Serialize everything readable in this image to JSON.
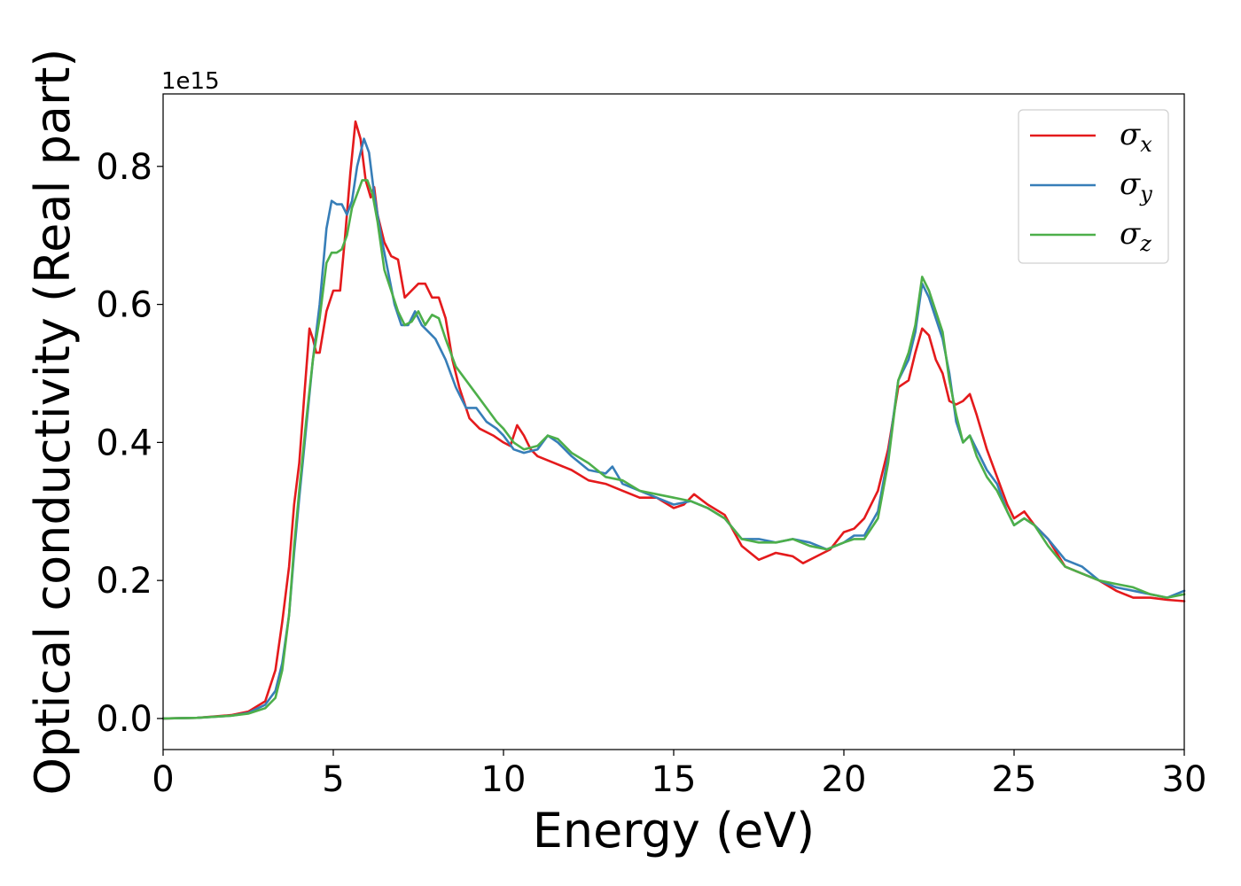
{
  "chart_data": {
    "type": "line",
    "xlabel": "Energy (eV)",
    "ylabel": "Optical conductivity (Real part)",
    "y_offset_label": "1e15",
    "xlim": [
      0,
      30
    ],
    "ylim": [
      -0.045,
      0.905
    ],
    "xticks": [
      0,
      5,
      10,
      15,
      20,
      25,
      30
    ],
    "xtick_labels": [
      "0",
      "5",
      "10",
      "15",
      "20",
      "25",
      "30"
    ],
    "yticks": [
      0.0,
      0.2,
      0.4,
      0.6,
      0.8
    ],
    "ytick_labels": [
      "0.0",
      "0.2",
      "0.4",
      "0.6",
      "0.8"
    ],
    "grid": false,
    "legend_position": "top-right",
    "series": [
      {
        "name": "σx",
        "legend_symbol": "σ",
        "legend_sub": "x",
        "color": "#e41a1c",
        "points": [
          [
            0,
            0
          ],
          [
            1,
            0.001
          ],
          [
            2,
            0.005
          ],
          [
            2.5,
            0.01
          ],
          [
            3,
            0.025
          ],
          [
            3.3,
            0.07
          ],
          [
            3.5,
            0.14
          ],
          [
            3.7,
            0.22
          ],
          [
            3.85,
            0.31
          ],
          [
            4.0,
            0.37
          ],
          [
            4.15,
            0.47
          ],
          [
            4.3,
            0.565
          ],
          [
            4.4,
            0.55
          ],
          [
            4.5,
            0.53
          ],
          [
            4.6,
            0.53
          ],
          [
            4.8,
            0.59
          ],
          [
            5.0,
            0.62
          ],
          [
            5.2,
            0.62
          ],
          [
            5.35,
            0.7
          ],
          [
            5.5,
            0.79
          ],
          [
            5.65,
            0.865
          ],
          [
            5.8,
            0.84
          ],
          [
            5.95,
            0.78
          ],
          [
            6.1,
            0.755
          ],
          [
            6.2,
            0.77
          ],
          [
            6.3,
            0.73
          ],
          [
            6.5,
            0.69
          ],
          [
            6.7,
            0.67
          ],
          [
            6.9,
            0.665
          ],
          [
            7.1,
            0.61
          ],
          [
            7.3,
            0.62
          ],
          [
            7.5,
            0.63
          ],
          [
            7.7,
            0.63
          ],
          [
            7.9,
            0.61
          ],
          [
            8.1,
            0.61
          ],
          [
            8.3,
            0.58
          ],
          [
            8.5,
            0.52
          ],
          [
            8.7,
            0.48
          ],
          [
            9.0,
            0.435
          ],
          [
            9.3,
            0.42
          ],
          [
            9.7,
            0.41
          ],
          [
            10.0,
            0.4
          ],
          [
            10.2,
            0.395
          ],
          [
            10.4,
            0.425
          ],
          [
            10.6,
            0.41
          ],
          [
            10.8,
            0.39
          ],
          [
            11.0,
            0.38
          ],
          [
            11.5,
            0.37
          ],
          [
            12.0,
            0.36
          ],
          [
            12.5,
            0.345
          ],
          [
            13.0,
            0.34
          ],
          [
            13.5,
            0.33
          ],
          [
            14.0,
            0.32
          ],
          [
            14.5,
            0.32
          ],
          [
            15.0,
            0.305
          ],
          [
            15.3,
            0.31
          ],
          [
            15.6,
            0.325
          ],
          [
            16.0,
            0.31
          ],
          [
            16.5,
            0.295
          ],
          [
            17.0,
            0.25
          ],
          [
            17.5,
            0.23
          ],
          [
            18.0,
            0.24
          ],
          [
            18.5,
            0.235
          ],
          [
            18.8,
            0.225
          ],
          [
            19.2,
            0.235
          ],
          [
            19.6,
            0.245
          ],
          [
            20.0,
            0.27
          ],
          [
            20.3,
            0.275
          ],
          [
            20.6,
            0.29
          ],
          [
            21.0,
            0.33
          ],
          [
            21.3,
            0.39
          ],
          [
            21.6,
            0.48
          ],
          [
            21.9,
            0.49
          ],
          [
            22.1,
            0.53
          ],
          [
            22.3,
            0.565
          ],
          [
            22.5,
            0.555
          ],
          [
            22.7,
            0.52
          ],
          [
            22.9,
            0.5
          ],
          [
            23.1,
            0.46
          ],
          [
            23.3,
            0.455
          ],
          [
            23.5,
            0.46
          ],
          [
            23.7,
            0.47
          ],
          [
            23.9,
            0.44
          ],
          [
            24.2,
            0.39
          ],
          [
            24.5,
            0.35
          ],
          [
            24.8,
            0.31
          ],
          [
            25.0,
            0.29
          ],
          [
            25.3,
            0.3
          ],
          [
            25.6,
            0.28
          ],
          [
            26.0,
            0.26
          ],
          [
            26.5,
            0.22
          ],
          [
            27.0,
            0.21
          ],
          [
            27.5,
            0.2
          ],
          [
            28.0,
            0.185
          ],
          [
            28.5,
            0.175
          ],
          [
            29.0,
            0.175
          ],
          [
            29.5,
            0.172
          ],
          [
            30,
            0.17
          ]
        ]
      },
      {
        "name": "σy",
        "legend_symbol": "σ",
        "legend_sub": "y",
        "color": "#377eb8",
        "points": [
          [
            0,
            0
          ],
          [
            1,
            0.001
          ],
          [
            2,
            0.004
          ],
          [
            2.5,
            0.008
          ],
          [
            3,
            0.02
          ],
          [
            3.3,
            0.04
          ],
          [
            3.5,
            0.08
          ],
          [
            3.7,
            0.15
          ],
          [
            3.85,
            0.24
          ],
          [
            4.0,
            0.32
          ],
          [
            4.2,
            0.42
          ],
          [
            4.4,
            0.52
          ],
          [
            4.6,
            0.6
          ],
          [
            4.8,
            0.71
          ],
          [
            4.95,
            0.75
          ],
          [
            5.1,
            0.745
          ],
          [
            5.25,
            0.745
          ],
          [
            5.4,
            0.73
          ],
          [
            5.55,
            0.75
          ],
          [
            5.7,
            0.8
          ],
          [
            5.9,
            0.84
          ],
          [
            6.05,
            0.82
          ],
          [
            6.2,
            0.76
          ],
          [
            6.4,
            0.7
          ],
          [
            6.6,
            0.65
          ],
          [
            6.8,
            0.6
          ],
          [
            7.0,
            0.57
          ],
          [
            7.2,
            0.57
          ],
          [
            7.4,
            0.59
          ],
          [
            7.6,
            0.57
          ],
          [
            7.8,
            0.56
          ],
          [
            8.0,
            0.55
          ],
          [
            8.3,
            0.52
          ],
          [
            8.6,
            0.48
          ],
          [
            8.9,
            0.45
          ],
          [
            9.2,
            0.45
          ],
          [
            9.5,
            0.43
          ],
          [
            9.8,
            0.42
          ],
          [
            10.0,
            0.41
          ],
          [
            10.3,
            0.39
          ],
          [
            10.6,
            0.385
          ],
          [
            11.0,
            0.39
          ],
          [
            11.3,
            0.41
          ],
          [
            11.6,
            0.4
          ],
          [
            12.0,
            0.38
          ],
          [
            12.5,
            0.36
          ],
          [
            13.0,
            0.355
          ],
          [
            13.2,
            0.365
          ],
          [
            13.5,
            0.34
          ],
          [
            14.0,
            0.33
          ],
          [
            14.5,
            0.32
          ],
          [
            15.0,
            0.31
          ],
          [
            15.5,
            0.315
          ],
          [
            16.0,
            0.305
          ],
          [
            16.5,
            0.29
          ],
          [
            17.0,
            0.26
          ],
          [
            17.5,
            0.26
          ],
          [
            18.0,
            0.255
          ],
          [
            18.5,
            0.26
          ],
          [
            19.0,
            0.255
          ],
          [
            19.5,
            0.245
          ],
          [
            20.0,
            0.255
          ],
          [
            20.3,
            0.265
          ],
          [
            20.6,
            0.265
          ],
          [
            21.0,
            0.3
          ],
          [
            21.3,
            0.38
          ],
          [
            21.6,
            0.49
          ],
          [
            21.9,
            0.52
          ],
          [
            22.1,
            0.56
          ],
          [
            22.3,
            0.63
          ],
          [
            22.5,
            0.61
          ],
          [
            22.7,
            0.58
          ],
          [
            22.9,
            0.55
          ],
          [
            23.1,
            0.5
          ],
          [
            23.3,
            0.43
          ],
          [
            23.5,
            0.4
          ],
          [
            23.7,
            0.41
          ],
          [
            23.9,
            0.39
          ],
          [
            24.2,
            0.36
          ],
          [
            24.5,
            0.34
          ],
          [
            24.8,
            0.3
          ],
          [
            25.0,
            0.28
          ],
          [
            25.3,
            0.29
          ],
          [
            25.6,
            0.28
          ],
          [
            26.0,
            0.26
          ],
          [
            26.5,
            0.23
          ],
          [
            27.0,
            0.22
          ],
          [
            27.5,
            0.2
          ],
          [
            28.0,
            0.19
          ],
          [
            28.5,
            0.185
          ],
          [
            29.0,
            0.18
          ],
          [
            29.5,
            0.175
          ],
          [
            30,
            0.185
          ]
        ]
      },
      {
        "name": "σz",
        "legend_symbol": "σ",
        "legend_sub": "z",
        "color": "#4daf4a",
        "points": [
          [
            0,
            0
          ],
          [
            1,
            0.001
          ],
          [
            2,
            0.004
          ],
          [
            2.5,
            0.007
          ],
          [
            3,
            0.015
          ],
          [
            3.3,
            0.03
          ],
          [
            3.5,
            0.07
          ],
          [
            3.7,
            0.15
          ],
          [
            3.85,
            0.25
          ],
          [
            4.0,
            0.33
          ],
          [
            4.2,
            0.43
          ],
          [
            4.4,
            0.52
          ],
          [
            4.6,
            0.58
          ],
          [
            4.8,
            0.66
          ],
          [
            4.95,
            0.675
          ],
          [
            5.1,
            0.675
          ],
          [
            5.25,
            0.68
          ],
          [
            5.4,
            0.7
          ],
          [
            5.55,
            0.74
          ],
          [
            5.7,
            0.76
          ],
          [
            5.85,
            0.78
          ],
          [
            6.0,
            0.78
          ],
          [
            6.15,
            0.76
          ],
          [
            6.3,
            0.72
          ],
          [
            6.5,
            0.65
          ],
          [
            6.7,
            0.62
          ],
          [
            6.9,
            0.59
          ],
          [
            7.1,
            0.57
          ],
          [
            7.3,
            0.575
          ],
          [
            7.5,
            0.59
          ],
          [
            7.7,
            0.57
          ],
          [
            7.9,
            0.585
          ],
          [
            8.1,
            0.58
          ],
          [
            8.3,
            0.55
          ],
          [
            8.6,
            0.51
          ],
          [
            8.9,
            0.49
          ],
          [
            9.2,
            0.47
          ],
          [
            9.5,
            0.45
          ],
          [
            9.8,
            0.43
          ],
          [
            10.0,
            0.42
          ],
          [
            10.3,
            0.4
          ],
          [
            10.6,
            0.39
          ],
          [
            11.0,
            0.395
          ],
          [
            11.3,
            0.41
          ],
          [
            11.6,
            0.405
          ],
          [
            12.0,
            0.385
          ],
          [
            12.5,
            0.37
          ],
          [
            13.0,
            0.35
          ],
          [
            13.5,
            0.345
          ],
          [
            14.0,
            0.33
          ],
          [
            14.5,
            0.325
          ],
          [
            15.0,
            0.32
          ],
          [
            15.5,
            0.315
          ],
          [
            16.0,
            0.305
          ],
          [
            16.5,
            0.29
          ],
          [
            17.0,
            0.26
          ],
          [
            17.5,
            0.255
          ],
          [
            18.0,
            0.255
          ],
          [
            18.5,
            0.26
          ],
          [
            19.0,
            0.25
          ],
          [
            19.5,
            0.245
          ],
          [
            20.0,
            0.255
          ],
          [
            20.3,
            0.26
          ],
          [
            20.6,
            0.26
          ],
          [
            21.0,
            0.29
          ],
          [
            21.3,
            0.37
          ],
          [
            21.6,
            0.49
          ],
          [
            21.9,
            0.53
          ],
          [
            22.1,
            0.57
          ],
          [
            22.3,
            0.64
          ],
          [
            22.5,
            0.62
          ],
          [
            22.7,
            0.59
          ],
          [
            22.9,
            0.56
          ],
          [
            23.1,
            0.49
          ],
          [
            23.3,
            0.44
          ],
          [
            23.5,
            0.4
          ],
          [
            23.7,
            0.41
          ],
          [
            23.9,
            0.38
          ],
          [
            24.2,
            0.35
          ],
          [
            24.5,
            0.33
          ],
          [
            24.8,
            0.3
          ],
          [
            25.0,
            0.28
          ],
          [
            25.3,
            0.29
          ],
          [
            25.6,
            0.28
          ],
          [
            26.0,
            0.25
          ],
          [
            26.5,
            0.22
          ],
          [
            27.0,
            0.21
          ],
          [
            27.5,
            0.2
          ],
          [
            28.0,
            0.195
          ],
          [
            28.5,
            0.19
          ],
          [
            29.0,
            0.18
          ],
          [
            29.5,
            0.175
          ],
          [
            30,
            0.18
          ]
        ]
      }
    ]
  }
}
